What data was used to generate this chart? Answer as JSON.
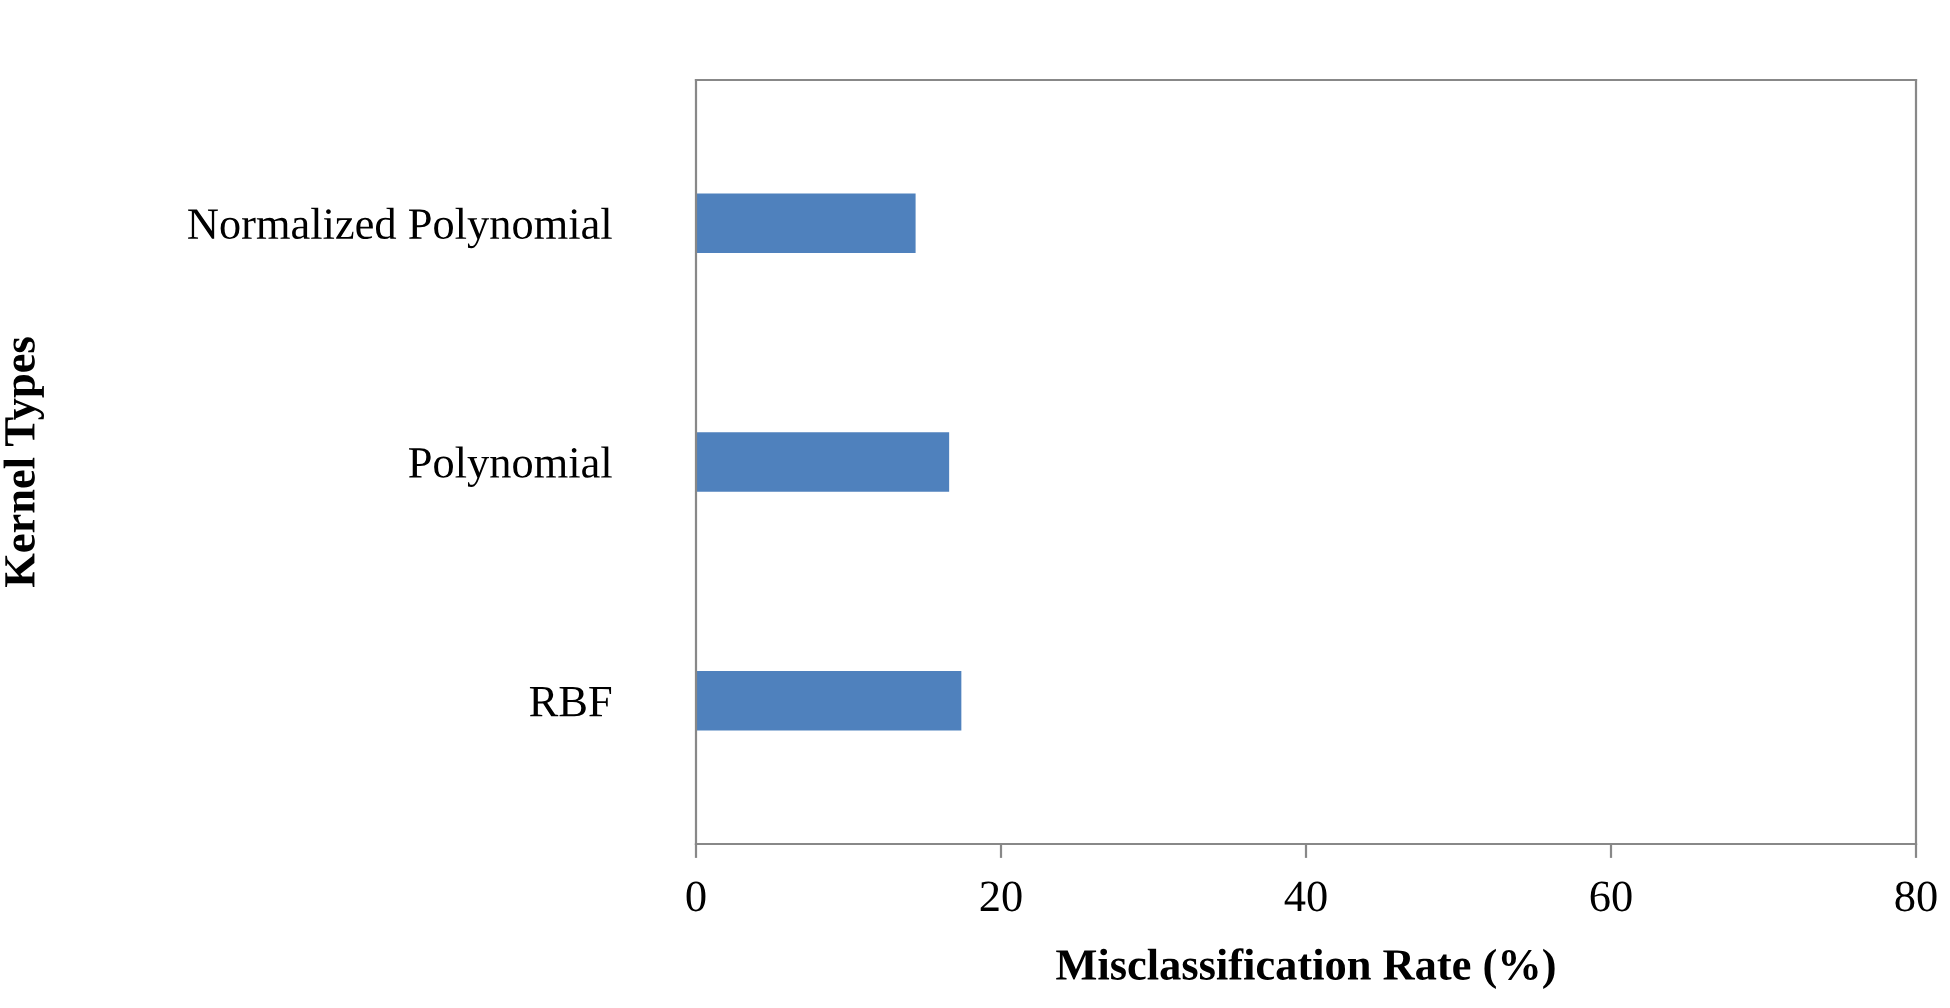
{
  "chart_data": {
    "type": "bar",
    "orientation": "horizontal",
    "xlabel": "Misclassification Rate (%)",
    "ylabel": "Kernel Types",
    "categories": [
      "Normalized Polynomial",
      "Polynomial",
      "RBF"
    ],
    "values": [
      14.4,
      16.6,
      17.4
    ],
    "color": "#4f81bd",
    "xlim": [
      0,
      80
    ],
    "xticks": [
      0,
      20,
      40,
      60,
      80
    ],
    "grid": false,
    "legend": false
  }
}
